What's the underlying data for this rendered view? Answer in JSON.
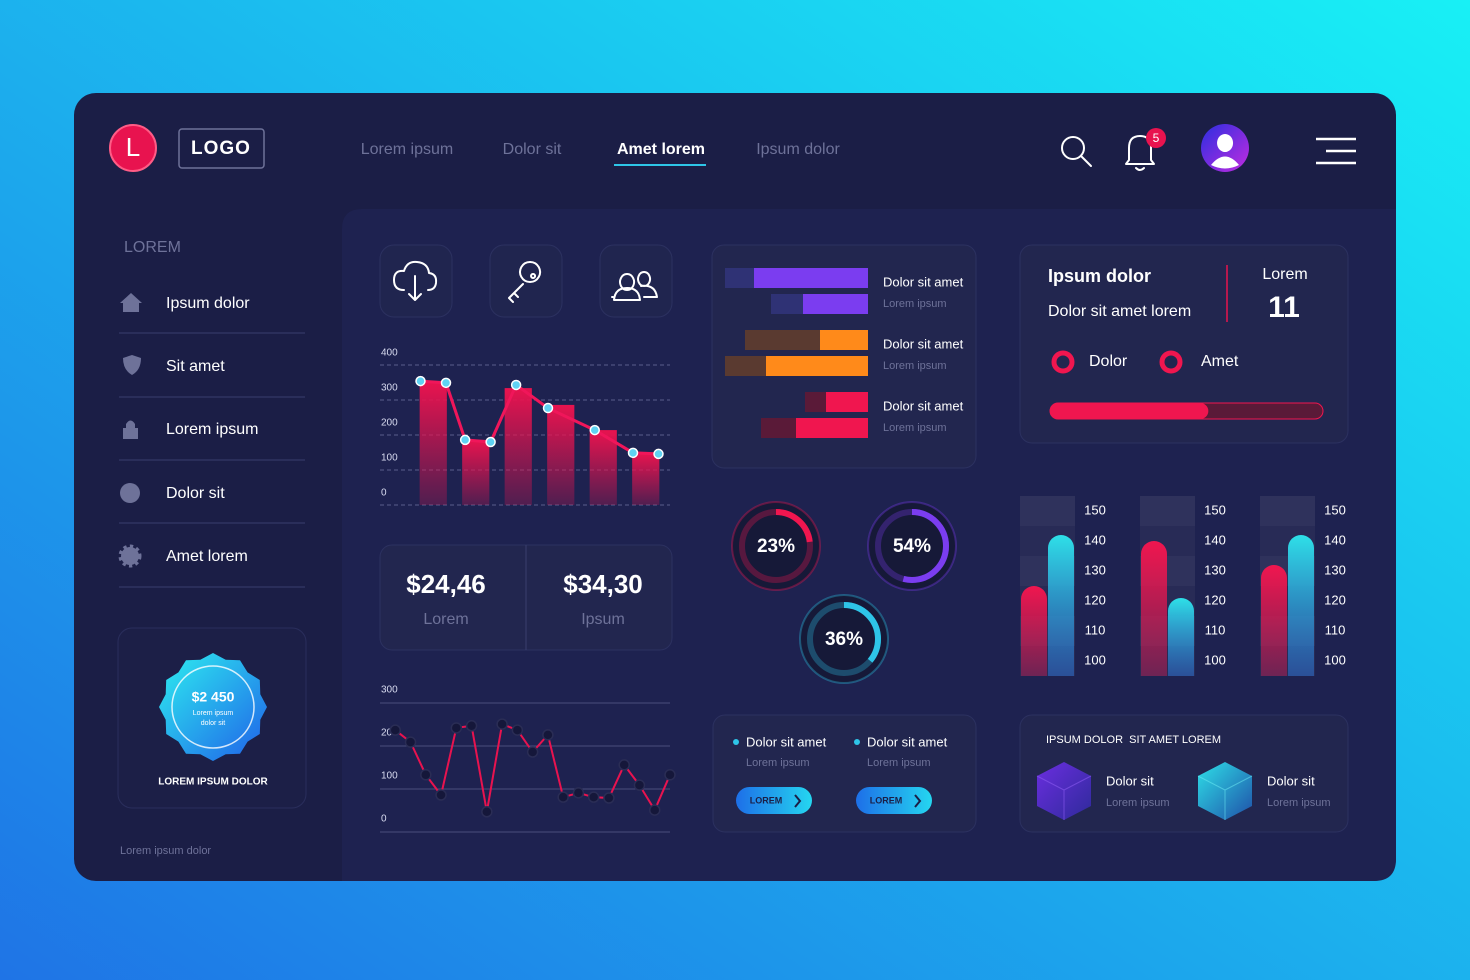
{
  "header": {
    "logo_letter": "L",
    "logo": "LOGO",
    "nav": [
      "Lorem ipsum",
      "Dolor sit",
      "Amet lorem",
      "Ipsum dolor"
    ],
    "notifications": 5
  },
  "sidebar": {
    "title": "LOREM",
    "items": [
      "Ipsum dolor",
      "Sit amet",
      "Lorem ipsum",
      "Dolor sit",
      "Amet lorem"
    ],
    "badge": {
      "amount": "$2 450",
      "text": [
        "Lorem ipsum",
        "dolor sit"
      ],
      "caption": "LOREM IPSUM DOLOR"
    },
    "footer": "Lorem ipsum dolor"
  },
  "stats": [
    {
      "value": "$24,46",
      "label": "Lorem"
    },
    {
      "value": "$34,30",
      "label": "Ipsum"
    }
  ],
  "info_card": {
    "title": "Ipsum dolor",
    "subtitle": "Dolor sit amet lorem",
    "count_label": "Lorem",
    "count": 11,
    "options": [
      "Dolor",
      "Amet"
    ]
  },
  "legend_panel": {
    "items": [
      {
        "title": "Dolor sit amet",
        "subtitle": "Lorem ipsum",
        "button": "LOREM"
      },
      {
        "title": "Dolor sit amet",
        "subtitle": "Lorem ipsum",
        "button": "LOREM"
      }
    ]
  },
  "cubes_panel": {
    "title": "IPSUM DOLOR  SIT AMET LOREM",
    "items": [
      {
        "title": "Dolor sit",
        "subtitle": "Lorem ipsum"
      },
      {
        "title": "Dolor sit",
        "subtitle": "Lorem ipsum"
      }
    ]
  },
  "chart_data": [
    {
      "type": "combo",
      "categories": [
        null,
        null,
        null,
        null,
        null,
        null
      ],
      "xlim": [
        0,
        6
      ],
      "ylim": [
        0,
        400
      ],
      "yticks": [
        0,
        100,
        200,
        300,
        400
      ],
      "grid": true,
      "series": [
        {
          "type": "bar",
          "color": "#e8134f",
          "values": [
            349,
            186,
            334,
            286,
            214,
            149
          ]
        },
        {
          "type": "line",
          "color": "#f0165a",
          "x": [
            0.2,
            0.8,
            1.25,
            1.85,
            2.45,
            3.2,
            4.3,
            5.2,
            5.8
          ],
          "values": [
            354,
            349,
            186,
            180,
            343,
            277,
            214,
            149,
            146
          ]
        }
      ]
    },
    {
      "type": "line",
      "color": "#e8134f",
      "xlim": [
        0,
        19
      ],
      "ylim": [
        0,
        300
      ],
      "yticks": [
        0,
        100,
        200,
        300
      ],
      "grid": true,
      "x": [
        1,
        2,
        3,
        4,
        5,
        6,
        7,
        8,
        9,
        10,
        11,
        12,
        13,
        14,
        15,
        16,
        17,
        18,
        19
      ],
      "values": [
        237,
        209,
        133,
        86,
        242,
        247,
        47,
        251,
        237,
        186,
        226,
        81,
        91,
        81,
        79,
        156,
        109,
        51,
        133
      ]
    },
    {
      "type": "hbar",
      "xlim": [
        0,
        150
      ],
      "groups": [
        {
          "label": "Dolor sit amet",
          "sublabel": "Lorem ipsum",
          "color": "#7b3df0",
          "dark_color": "#2f3275",
          "bars": [
            [
              114,
              29
            ],
            [
              65,
              32
            ]
          ]
        },
        {
          "label": "Dolor sit amet",
          "sublabel": "Lorem ipsum",
          "color": "#ff8a1a",
          "dark_color": "#5a3a30",
          "bars": [
            [
              48,
              75
            ],
            [
              102,
              41
            ]
          ]
        },
        {
          "label": "Dolor sit amet",
          "sublabel": "Lorem ipsum",
          "color": "#f0164f",
          "dark_color": "#5a1a38",
          "bars": [
            [
              42,
              21
            ],
            [
              72,
              35
            ]
          ]
        }
      ]
    },
    {
      "type": "donut",
      "values": [
        23,
        54,
        36
      ],
      "value_labels": [
        "23%",
        "54%",
        "36%"
      ],
      "colors": [
        "#f0164f",
        "#7b3df0",
        "#2ec5e8"
      ],
      "ylim": [
        0,
        100
      ]
    },
    {
      "type": "bar",
      "categories": [
        null
      ],
      "ylim": [
        95,
        155
      ],
      "yticks": [
        100,
        110,
        120,
        130,
        140,
        150
      ],
      "series": [
        {
          "color": "#f0164f",
          "values": [
            125
          ]
        },
        {
          "color": "#2ee0e8",
          "values": [
            142
          ]
        }
      ]
    },
    {
      "type": "bar",
      "categories": [
        null
      ],
      "ylim": [
        95,
        155
      ],
      "yticks": [
        100,
        110,
        120,
        130,
        140,
        150
      ],
      "series": [
        {
          "color": "#f0164f",
          "values": [
            140
          ]
        },
        {
          "color": "#2ee0e8",
          "values": [
            121
          ]
        }
      ]
    },
    {
      "type": "bar",
      "categories": [
        null
      ],
      "ylim": [
        95,
        155
      ],
      "yticks": [
        100,
        110,
        120,
        130,
        140,
        150
      ],
      "series": [
        {
          "color": "#f0164f",
          "values": [
            132
          ]
        },
        {
          "color": "#2ee0e8",
          "values": [
            142
          ]
        }
      ]
    },
    {
      "type": "progress",
      "xlim": [
        0,
        100
      ],
      "values": [
        58
      ],
      "color": "#f0164f"
    }
  ]
}
